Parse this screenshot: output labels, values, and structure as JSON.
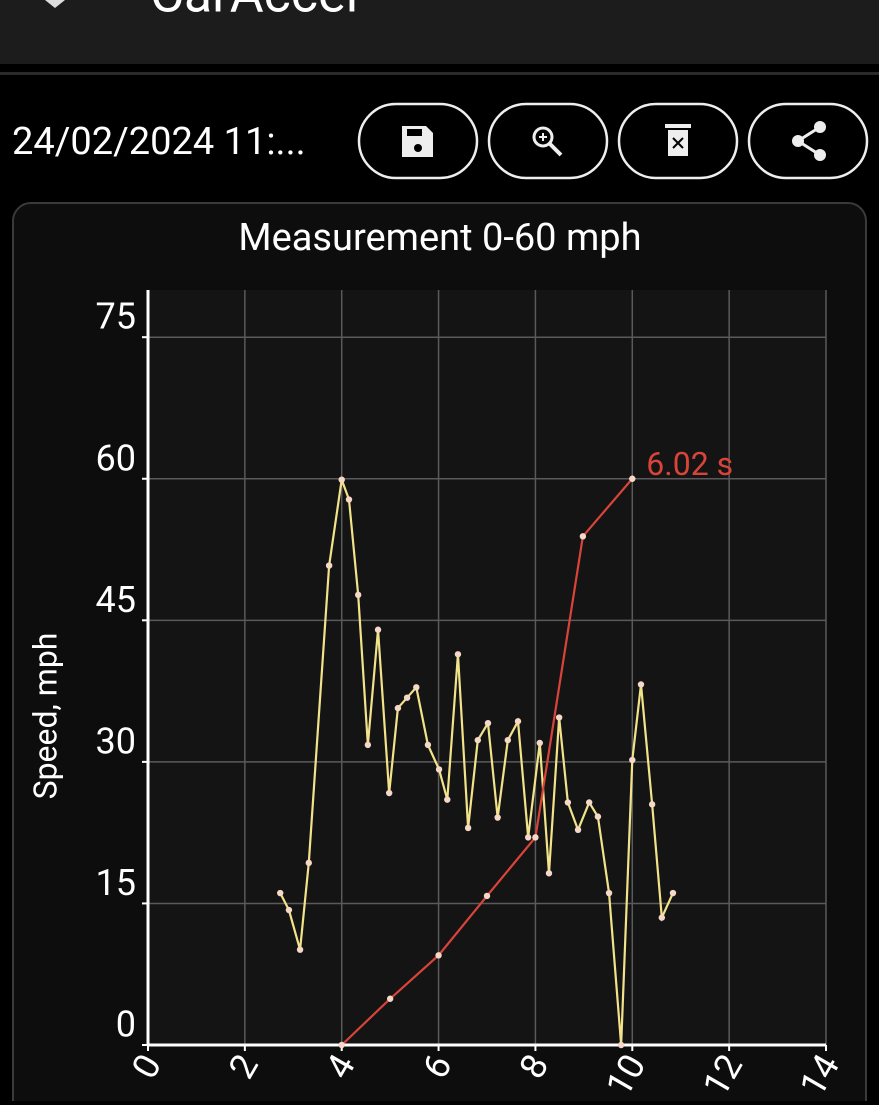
{
  "header": {
    "title": "CarAccel"
  },
  "toolbar": {
    "date": "24/02/2024 11:..."
  },
  "chart_data": {
    "type": "line",
    "title": "Measurement 0-60 mph",
    "y_label": "Speed, mph",
    "xlim": [
      0,
      14
    ],
    "xticks": [
      0,
      2,
      4,
      6,
      8,
      10,
      12,
      14
    ],
    "ylim": [
      0,
      80
    ],
    "yticks": [
      0,
      15,
      30,
      45,
      60,
      75
    ],
    "grid": true,
    "series": [
      {
        "color": "#f2e38a",
        "x": [
          2.73,
          2.91,
          3.14,
          3.32,
          3.74,
          4.0,
          4.15,
          4.34,
          4.54,
          4.75,
          4.98,
          5.16,
          5.35,
          5.54,
          5.78,
          6.01,
          6.18,
          6.4,
          6.61,
          6.81,
          7.02,
          7.22,
          7.43,
          7.64,
          7.85,
          8.09,
          8.28,
          8.49,
          8.67,
          8.88,
          9.11,
          9.29,
          9.52,
          9.77,
          10.0,
          10.18,
          10.41,
          10.61,
          10.84
        ],
        "values": [
          16.1,
          14.3,
          10.1,
          19.3,
          50.8,
          59.9,
          57.8,
          47.7,
          31.8,
          44.0,
          26.7,
          35.7,
          36.8,
          37.9,
          31.8,
          29.2,
          26.0,
          41.4,
          23.0,
          32.3,
          34.1,
          24.1,
          32.3,
          34.3,
          22.0,
          32.0,
          18.2,
          34.7,
          25.7,
          22.8,
          25.7,
          24.2,
          16.1,
          0,
          30.2,
          38.2,
          25.5,
          13.5,
          16.1
        ]
      },
      {
        "color": "#d9443a",
        "end_label": "6.02 s",
        "x": [
          4,
          5,
          6,
          7,
          8,
          8.98,
          10
        ],
        "values": [
          0,
          4.9,
          9.5,
          15.8,
          22,
          53.9,
          60
        ]
      }
    ]
  }
}
